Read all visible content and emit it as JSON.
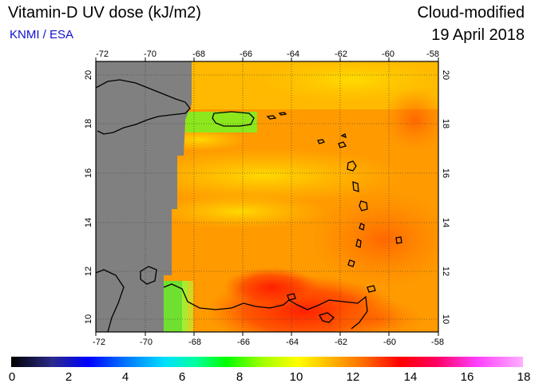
{
  "header": {
    "title": "Vitamin-D UV dose (kJ/m2)",
    "source": "KNMI / ESA",
    "product": "Cloud-modified",
    "date": "19 April 2018"
  },
  "map": {
    "lon_labels": [
      "-72",
      "-70",
      "-68",
      "-66",
      "-64",
      "-62",
      "-60",
      "-58"
    ],
    "lat_labels": [
      "10",
      "12",
      "14",
      "16",
      "18",
      "20"
    ]
  },
  "colorbar": {
    "labels": [
      "0",
      "2",
      "4",
      "6",
      "8",
      "10",
      "12",
      "14",
      "16",
      "18"
    ]
  },
  "colors": {
    "no_data": "#808080",
    "low": "#00ff00",
    "mid": "#ffd000",
    "high": "#ff2a00"
  }
}
